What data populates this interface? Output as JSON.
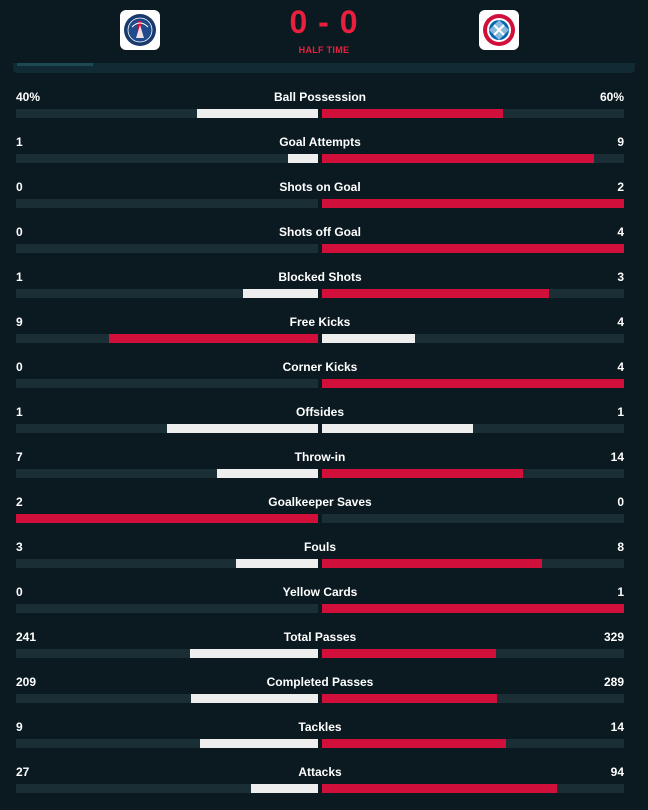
{
  "match": {
    "home_team": "Paris Saint-Germain",
    "away_team": "FC Bayern München",
    "home_score": "0",
    "away_score": "0",
    "separator": "-",
    "status": "HALF TIME"
  },
  "colors": {
    "accent": "#d0103a",
    "neutral": "#eeeeee",
    "track": "#1a2e36",
    "score": "#e8203e"
  },
  "stats": [
    {
      "name": "Ball Possession",
      "home": "40%",
      "away": "60%",
      "home_value": 40,
      "away_value": 60
    },
    {
      "name": "Goal Attempts",
      "home": "1",
      "away": "9",
      "home_value": 1,
      "away_value": 9
    },
    {
      "name": "Shots on Goal",
      "home": "0",
      "away": "2",
      "home_value": 0,
      "away_value": 2
    },
    {
      "name": "Shots off Goal",
      "home": "0",
      "away": "4",
      "home_value": 0,
      "away_value": 4
    },
    {
      "name": "Blocked Shots",
      "home": "1",
      "away": "3",
      "home_value": 1,
      "away_value": 3
    },
    {
      "name": "Free Kicks",
      "home": "9",
      "away": "4",
      "home_value": 9,
      "away_value": 4
    },
    {
      "name": "Corner Kicks",
      "home": "0",
      "away": "4",
      "home_value": 0,
      "away_value": 4
    },
    {
      "name": "Offsides",
      "home": "1",
      "away": "1",
      "home_value": 1,
      "away_value": 1
    },
    {
      "name": "Throw-in",
      "home": "7",
      "away": "14",
      "home_value": 7,
      "away_value": 14
    },
    {
      "name": "Goalkeeper Saves",
      "home": "2",
      "away": "0",
      "home_value": 2,
      "away_value": 0
    },
    {
      "name": "Fouls",
      "home": "3",
      "away": "8",
      "home_value": 3,
      "away_value": 8
    },
    {
      "name": "Yellow Cards",
      "home": "0",
      "away": "1",
      "home_value": 0,
      "away_value": 1
    },
    {
      "name": "Total Passes",
      "home": "241",
      "away": "329",
      "home_value": 241,
      "away_value": 329
    },
    {
      "name": "Completed Passes",
      "home": "209",
      "away": "289",
      "home_value": 209,
      "away_value": 289
    },
    {
      "name": "Tackles",
      "home": "9",
      "away": "14",
      "home_value": 9,
      "away_value": 14
    },
    {
      "name": "Attacks",
      "home": "27",
      "away": "94",
      "home_value": 27,
      "away_value": 94
    }
  ]
}
